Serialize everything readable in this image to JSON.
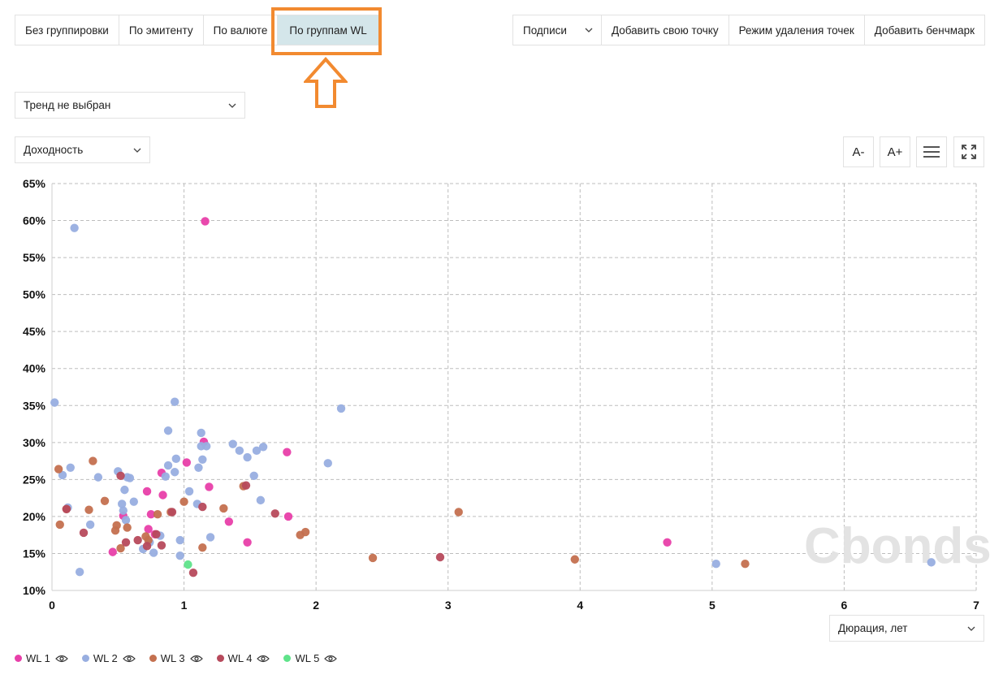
{
  "grouping_tabs": [
    "Без группировки",
    "По эмитенту",
    "По валюте",
    "По группам WL"
  ],
  "active_tab_index": 3,
  "toolbar": {
    "labels_select": "Подписи",
    "add_point": "Добавить свою точку",
    "delete_mode": "Режим удаления точек",
    "add_benchmark": "Добавить бенчмарк"
  },
  "trend_select": "Тренд не выбран",
  "metric_select": "Доходность",
  "x_axis_select": "Дюрация, лет",
  "tools": {
    "font_decrease": "A-",
    "font_increase": "A+"
  },
  "watermark": "Cbonds",
  "colors": {
    "accent_highlight": "#f28a30",
    "active_tab": "#d4e6ea"
  },
  "chart_data": {
    "type": "scatter",
    "xlim": [
      0,
      7
    ],
    "ylim": [
      10,
      65
    ],
    "x_ticks": [
      0,
      1,
      2,
      3,
      4,
      5,
      6,
      7
    ],
    "y_ticks": [
      10,
      15,
      20,
      25,
      30,
      35,
      40,
      45,
      50,
      55,
      60,
      65
    ],
    "y_tick_labels": [
      "10%",
      "15%",
      "20%",
      "25%",
      "30%",
      "35%",
      "40%",
      "45%",
      "50%",
      "55%",
      "60%",
      "65%"
    ],
    "grid": true,
    "legend_position": "bottom-left",
    "series": [
      {
        "name": "WL 1",
        "color": "#e83fa9",
        "points": [
          [
            1.16,
            59.9
          ],
          [
            1.15,
            30.1
          ],
          [
            1.78,
            28.7
          ],
          [
            1.02,
            27.3
          ],
          [
            0.83,
            25.9
          ],
          [
            1.19,
            24.0
          ],
          [
            0.72,
            23.4
          ],
          [
            0.84,
            22.9
          ],
          [
            0.75,
            20.3
          ],
          [
            1.79,
            20.0
          ],
          [
            0.54,
            20.1
          ],
          [
            1.34,
            19.3
          ],
          [
            0.73,
            18.3
          ],
          [
            0.78,
            17.6
          ],
          [
            1.48,
            16.5
          ],
          [
            0.46,
            15.2
          ],
          [
            4.66,
            16.5
          ]
        ]
      },
      {
        "name": "WL 2",
        "color": "#98aee0",
        "points": [
          [
            0.17,
            59.0
          ],
          [
            0.02,
            35.4
          ],
          [
            0.93,
            35.5
          ],
          [
            2.19,
            34.6
          ],
          [
            0.88,
            31.6
          ],
          [
            1.13,
            31.3
          ],
          [
            1.37,
            29.8
          ],
          [
            1.13,
            29.5
          ],
          [
            1.17,
            29.5
          ],
          [
            1.42,
            28.9
          ],
          [
            1.6,
            29.4
          ],
          [
            1.55,
            28.9
          ],
          [
            0.94,
            27.8
          ],
          [
            1.14,
            27.7
          ],
          [
            1.48,
            28.0
          ],
          [
            2.09,
            27.2
          ],
          [
            0.88,
            26.9
          ],
          [
            1.11,
            26.6
          ],
          [
            0.14,
            26.6
          ],
          [
            0.5,
            26.1
          ],
          [
            0.93,
            26.0
          ],
          [
            0.08,
            25.6
          ],
          [
            0.35,
            25.3
          ],
          [
            0.57,
            25.3
          ],
          [
            0.86,
            25.4
          ],
          [
            1.53,
            25.5
          ],
          [
            0.59,
            25.2
          ],
          [
            1.04,
            23.4
          ],
          [
            0.55,
            23.6
          ],
          [
            0.62,
            22.0
          ],
          [
            0.53,
            21.7
          ],
          [
            1.58,
            22.2
          ],
          [
            1.1,
            21.7
          ],
          [
            0.12,
            21.2
          ],
          [
            0.54,
            20.8
          ],
          [
            0.56,
            19.5
          ],
          [
            0.29,
            18.9
          ],
          [
            0.82,
            17.4
          ],
          [
            0.97,
            16.8
          ],
          [
            1.2,
            17.2
          ],
          [
            0.74,
            16.5
          ],
          [
            0.69,
            15.6
          ],
          [
            0.77,
            15.1
          ],
          [
            0.97,
            14.7
          ],
          [
            0.21,
            12.5
          ],
          [
            5.03,
            13.6
          ],
          [
            6.66,
            13.8
          ]
        ]
      },
      {
        "name": "WL 3",
        "color": "#c4704f",
        "points": [
          [
            0.31,
            27.5
          ],
          [
            0.05,
            26.4
          ],
          [
            0.4,
            22.1
          ],
          [
            1.0,
            22.0
          ],
          [
            0.11,
            21.0
          ],
          [
            0.28,
            20.9
          ],
          [
            1.3,
            21.1
          ],
          [
            0.9,
            20.6
          ],
          [
            0.8,
            20.3
          ],
          [
            3.08,
            20.6
          ],
          [
            0.06,
            18.9
          ],
          [
            0.49,
            18.8
          ],
          [
            0.57,
            18.5
          ],
          [
            0.48,
            18.1
          ],
          [
            1.92,
            17.9
          ],
          [
            1.88,
            17.5
          ],
          [
            0.71,
            17.3
          ],
          [
            0.73,
            16.8
          ],
          [
            1.14,
            15.8
          ],
          [
            0.52,
            15.7
          ],
          [
            2.43,
            14.4
          ],
          [
            3.96,
            14.2
          ],
          [
            5.25,
            13.6
          ],
          [
            1.45,
            24.1
          ]
        ]
      },
      {
        "name": "WL 4",
        "color": "#b74a5c",
        "points": [
          [
            0.52,
            25.5
          ],
          [
            1.47,
            24.2
          ],
          [
            0.11,
            21.0
          ],
          [
            1.69,
            20.4
          ],
          [
            0.91,
            20.6
          ],
          [
            1.14,
            21.3
          ],
          [
            0.24,
            17.8
          ],
          [
            0.79,
            17.6
          ],
          [
            0.65,
            16.8
          ],
          [
            0.56,
            16.5
          ],
          [
            0.72,
            16.0
          ],
          [
            0.83,
            16.1
          ],
          [
            1.07,
            12.4
          ],
          [
            2.94,
            14.5
          ]
        ]
      },
      {
        "name": "WL 5",
        "color": "#5fe38a",
        "points": [
          [
            1.03,
            13.5
          ]
        ]
      }
    ]
  }
}
